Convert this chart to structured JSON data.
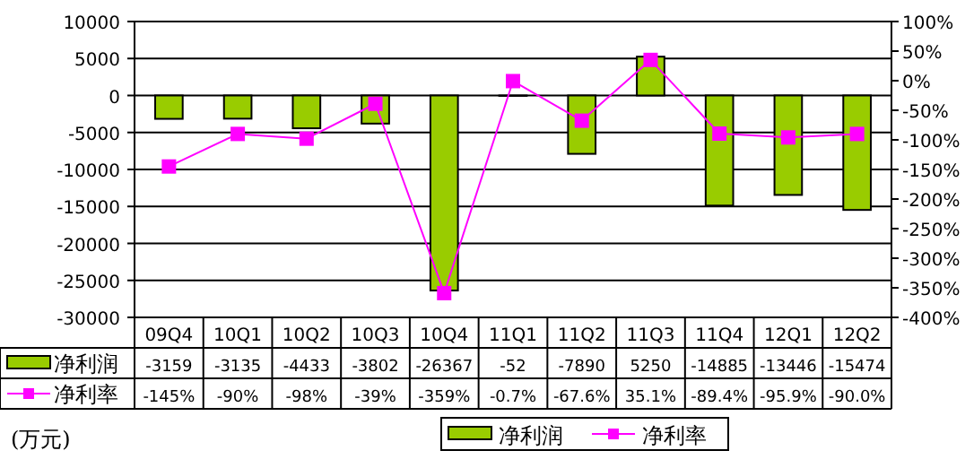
{
  "chart_data": {
    "type": "bar",
    "categories": [
      "09Q4",
      "10Q1",
      "10Q2",
      "10Q3",
      "10Q4",
      "11Q1",
      "11Q2",
      "11Q3",
      "11Q4",
      "12Q1",
      "12Q2"
    ],
    "series": [
      {
        "name": "净利润",
        "color": "#99cc00",
        "values": [
          -3159,
          -3135,
          -4433,
          -3802,
          -26367,
          -52,
          -7890,
          5250,
          -14885,
          -13446,
          -15474
        ],
        "value_labels": [
          "-3159",
          "-3135",
          "-4433",
          "-3802",
          "-26367",
          "-52",
          "-7890",
          "5250",
          "-14885",
          "-13446",
          "-15474"
        ]
      },
      {
        "name": "净利率",
        "type": "line",
        "axis": "y2",
        "color": "#ff00ff",
        "values": [
          -145,
          -90,
          -98,
          -39,
          -359,
          -0.7,
          -67.6,
          35.1,
          -89.4,
          -95.9,
          -90.0
        ],
        "value_labels": [
          "-145%",
          "-90%",
          "-98%",
          "-39%",
          "-359%",
          "-0.7%",
          "-67.6%",
          "35.1%",
          "-89.4%",
          "-95.9%",
          "-90.0%"
        ]
      }
    ],
    "ylim": [
      -30000,
      10000
    ],
    "yticks": [
      -30000,
      -25000,
      -20000,
      -15000,
      -10000,
      -5000,
      0,
      5000,
      10000
    ],
    "y2lim": [
      -400,
      100
    ],
    "y2ticks": [
      {
        "value": -400,
        "label": "-400%"
      },
      {
        "value": -350,
        "label": "-350%"
      },
      {
        "value": -300,
        "label": "-300%"
      },
      {
        "value": -250,
        "label": "-250%"
      },
      {
        "value": -200,
        "label": "-200%"
      },
      {
        "value": -150,
        "label": "-150%"
      },
      {
        "value": -100,
        "label": "-100%"
      },
      {
        "value": -50,
        "label": "-50%"
      },
      {
        "value": 0,
        "label": "0%"
      },
      {
        "value": 50,
        "label": "50%"
      },
      {
        "value": 100,
        "label": "100%"
      }
    ],
    "grid": "y",
    "legend": "bottom",
    "marker": "square",
    "annotations": [
      "(万元)"
    ]
  }
}
